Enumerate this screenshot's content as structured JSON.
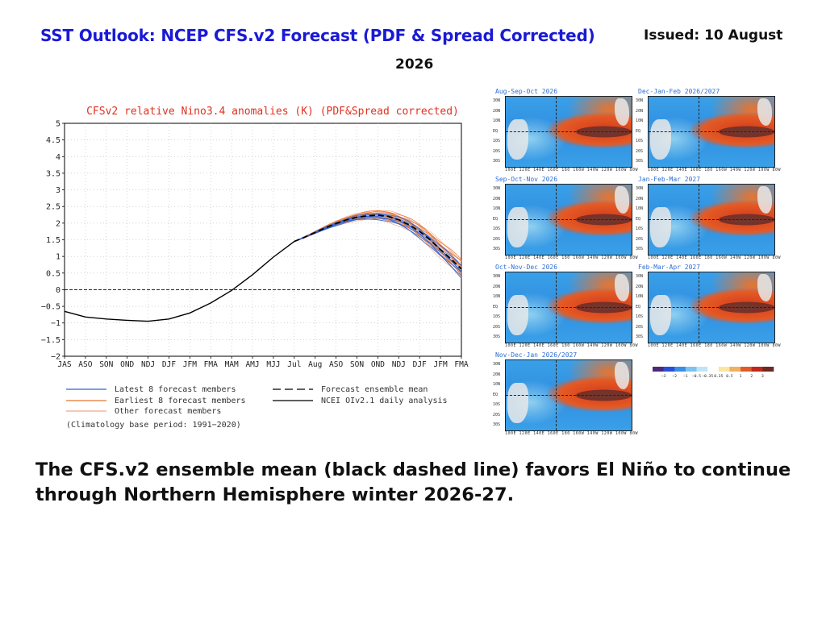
{
  "header": {
    "title": "SST Outlook: NCEP CFS.v2 Forecast (PDF & Spread Corrected)",
    "issued": "Issued: 10 August",
    "issued_year": "2026"
  },
  "summary": "The CFS.v2 ensemble mean (black dashed line) favors El Niño to continue through Northern Hemisphere winter 2026-27.",
  "colors": {
    "title": "#1a1ad6",
    "plot_title": "#e0311f",
    "latest_members": "#2a62d6",
    "earliest_members": "#e8742e",
    "other_members": "#f0a88a",
    "ensemble_mean": "#000000",
    "analysis": "#000000"
  },
  "chart_data": {
    "type": "line",
    "title": "CFSv2 relative Nino3.4 anomalies (K) (PDF&Spread corrected)",
    "categories": [
      "JAS",
      "ASO",
      "SON",
      "OND",
      "NDJ",
      "DJF",
      "JFM",
      "FMA",
      "MAM",
      "AMJ",
      "MJJ",
      "Jul",
      "Aug",
      "ASO",
      "SON",
      "OND",
      "NDJ",
      "DJF",
      "JFM",
      "FMA"
    ],
    "ylim": [
      -2,
      5
    ],
    "yticks": [
      "5",
      "4.5",
      "4",
      "3.5",
      "3",
      "2.5",
      "2",
      "1.5",
      "1",
      "0.5",
      "0",
      "-0.5",
      "-1",
      "-1.5",
      "-2"
    ],
    "grid": true,
    "zero_line": true,
    "series": [
      {
        "name": "NCEI OIv2.1 daily analysis",
        "style": "solid-black",
        "x": [
          0,
          1,
          2,
          3,
          4,
          5,
          6,
          7,
          8,
          9,
          10,
          11
        ],
        "values": [
          -0.65,
          -0.82,
          -0.88,
          -0.92,
          -0.95,
          -0.88,
          -0.7,
          -0.4,
          -0.02,
          0.45,
          0.98,
          1.45
        ]
      },
      {
        "name": "Forecast ensemble mean",
        "style": "dashed-black",
        "x": [
          11,
          11.5,
          12,
          12.5,
          13,
          13.5,
          14,
          14.5,
          15,
          15.5,
          16,
          16.5,
          17,
          17.5,
          18,
          18.5,
          19
        ],
        "values": [
          1.45,
          1.58,
          1.72,
          1.86,
          1.99,
          2.1,
          2.18,
          2.22,
          2.24,
          2.2,
          2.1,
          1.95,
          1.75,
          1.5,
          1.2,
          0.92,
          0.62
        ]
      }
    ],
    "legend": [
      {
        "label": "Latest 8 forecast members",
        "color": "#2a62d6"
      },
      {
        "label": "Earliest 8 forecast members",
        "color": "#e8742e"
      },
      {
        "label": "Other forecast members",
        "color": "#f0a88a"
      },
      {
        "label": "(Climatology base period: 1991−2020)",
        "color": null
      },
      {
        "label": "Forecast ensemble mean",
        "color": "#000000",
        "dashed": true
      },
      {
        "label": "NCEI OIv2.1 daily analysis",
        "color": "#000000",
        "dashed": false
      }
    ]
  },
  "maps": [
    {
      "title": "Aug-Sep-Oct 2026"
    },
    {
      "title": "Dec-Jan-Feb 2026/2027"
    },
    {
      "title": "Sep-Oct-Nov 2026"
    },
    {
      "title": "Jan-Feb-Mar 2027"
    },
    {
      "title": "Oct-Nov-Dec 2026"
    },
    {
      "title": "Feb-Mar-Apr 2027"
    },
    {
      "title": "Nov-Dec-Jan 2026/2027"
    }
  ],
  "map_axes": {
    "lats": [
      "30N",
      "20N",
      "10N",
      "EQ",
      "10S",
      "20S",
      "30S"
    ],
    "lons": "100E 120E 140E 160E 180 160W 140W 120W 100W 80W"
  },
  "colorbar": {
    "labels": [
      "-3",
      "-2",
      "-1",
      "-0.5",
      "-0.35",
      "0.35",
      "0.5",
      "1",
      "2",
      "3"
    ],
    "colors": [
      "#4a2a7a",
      "#2a4fd6",
      "#3a8fe6",
      "#7cc4f0",
      "#bfe4f8",
      "#ffffff",
      "#f8e6a0",
      "#f0b060",
      "#e05a2a",
      "#c0281a",
      "#6b2a22"
    ]
  }
}
